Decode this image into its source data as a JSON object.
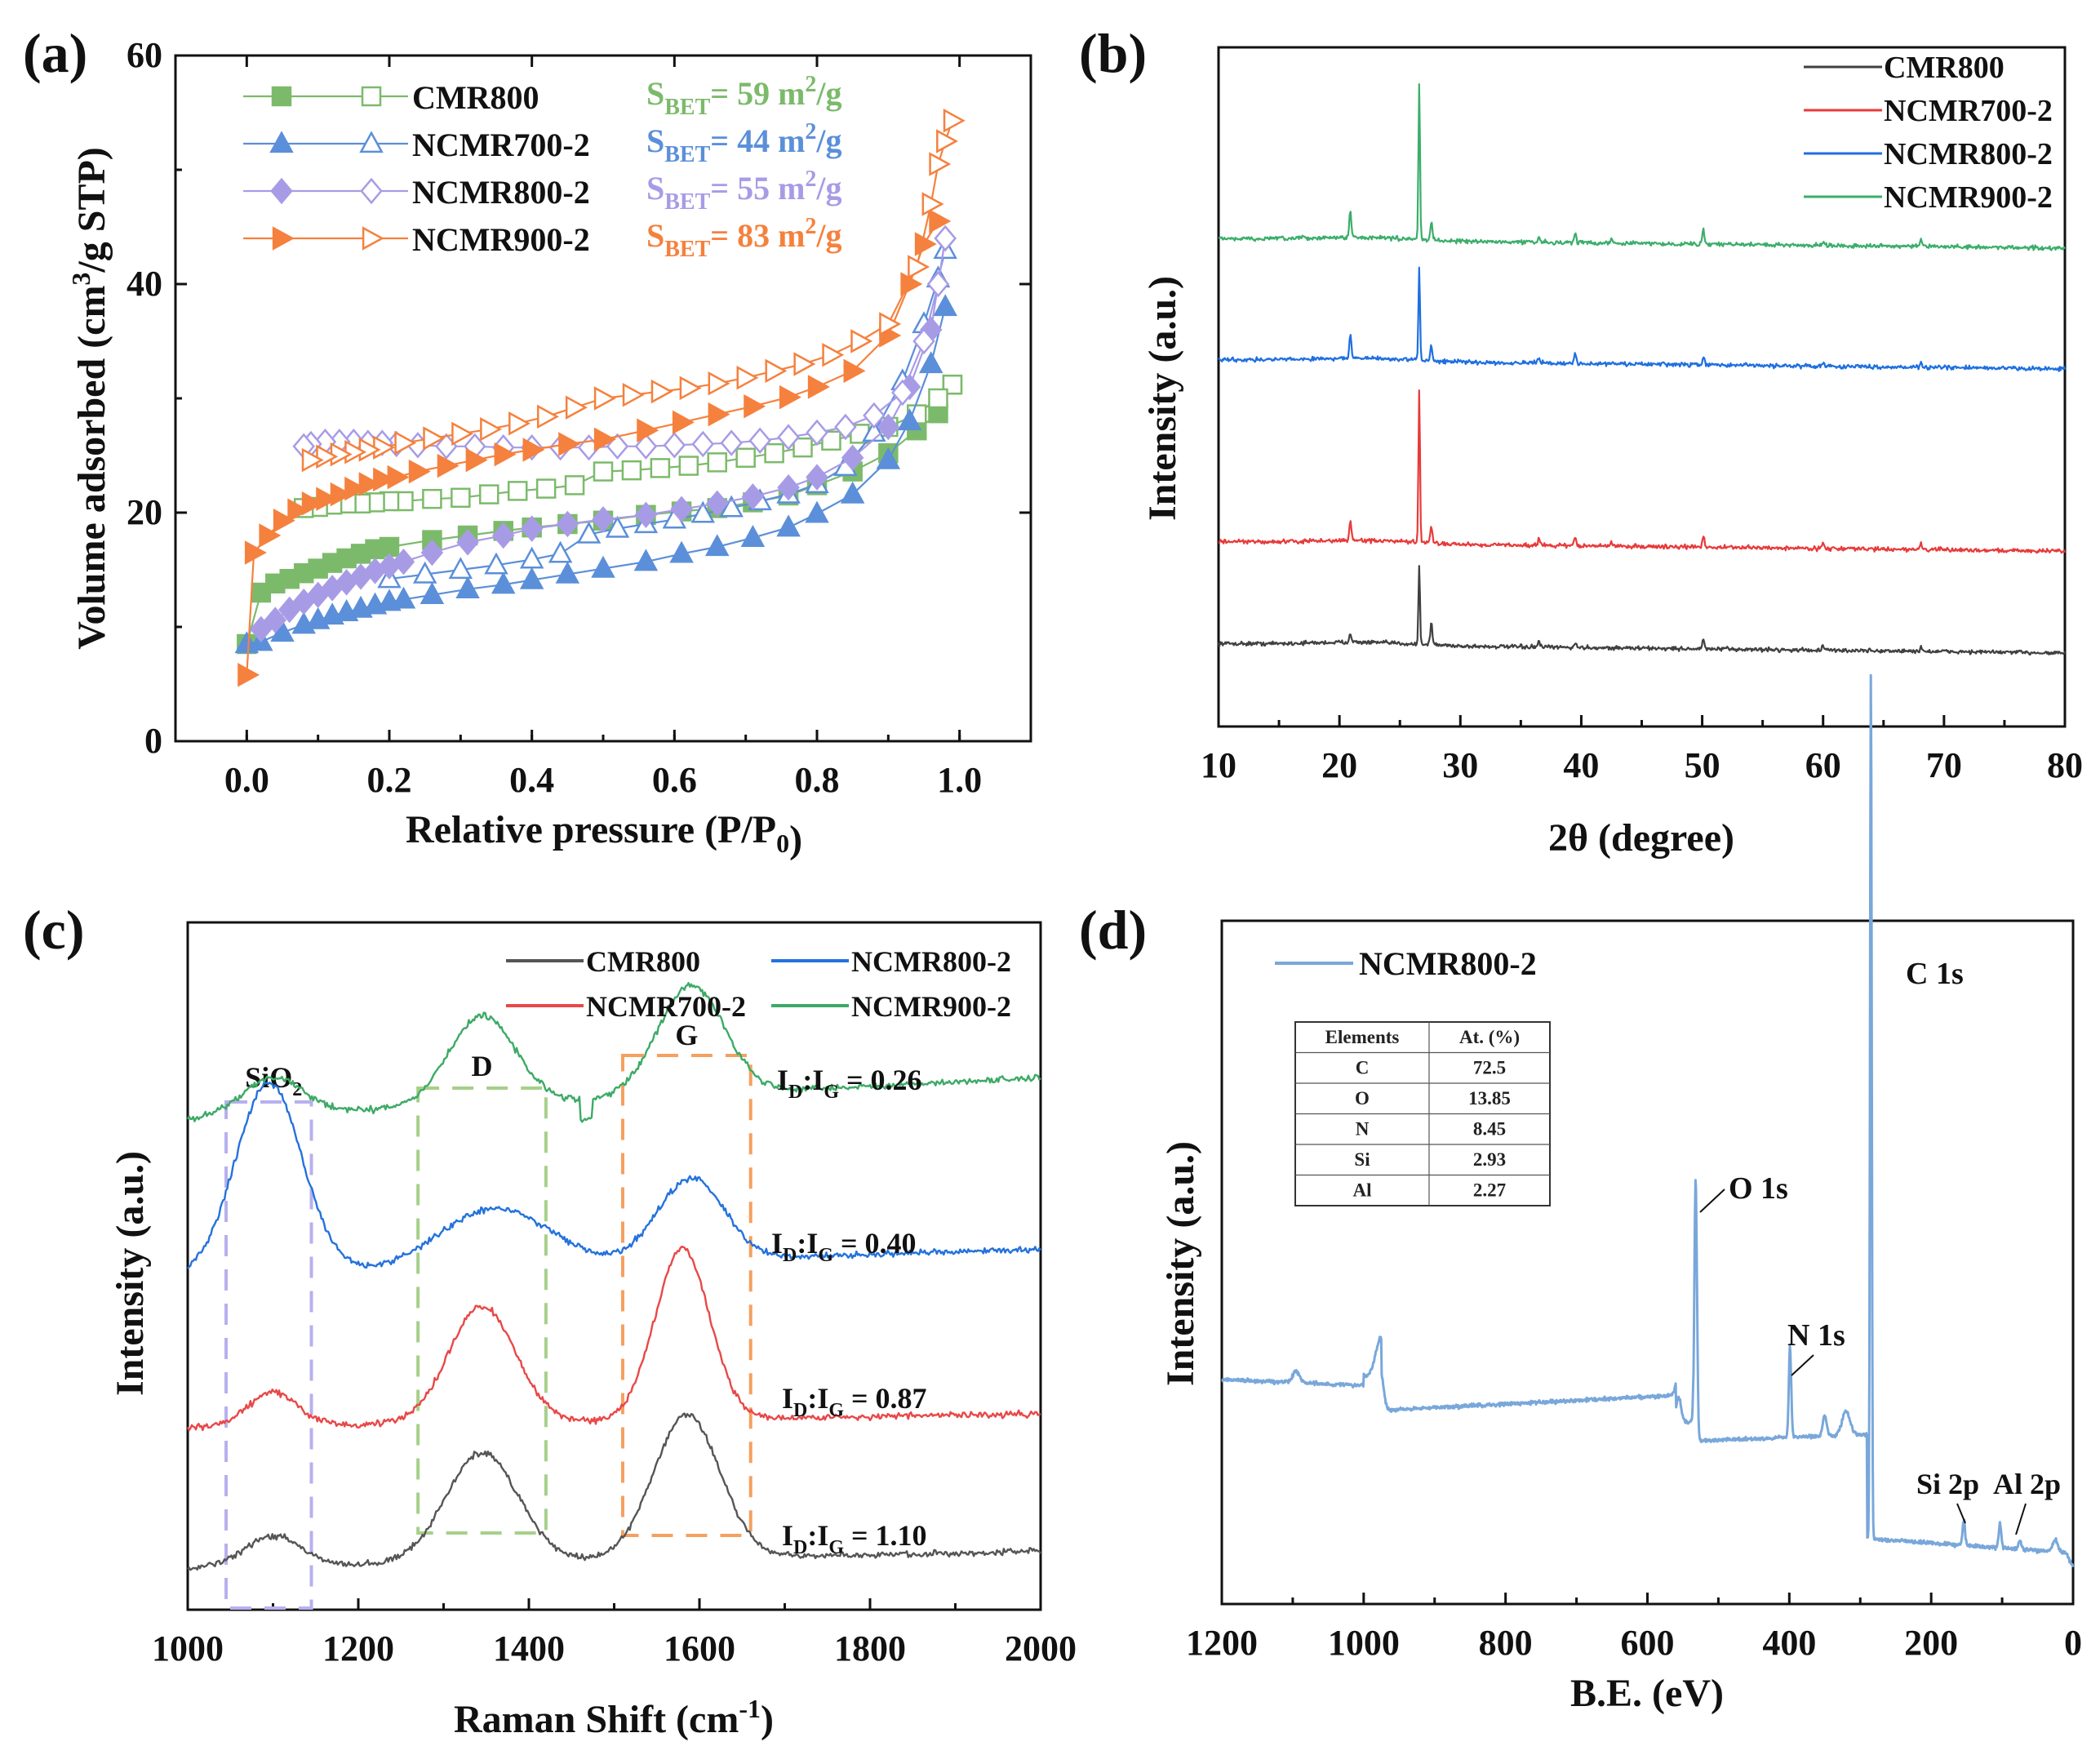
{
  "colors": {
    "green": "#7CBA6B",
    "blue": "#5B8FD9",
    "purple": "#A89BE6",
    "orange": "#F5813E",
    "xrd_black": "#404040",
    "xrd_red": "#E83A3A",
    "xrd_blue": "#1F6FE0",
    "xrd_green": "#3BAE6A",
    "xps_blue": "#79A7DA"
  },
  "chart_data": [
    {
      "panel": "(a)",
      "type": "line",
      "xlabel": "Relative pressure (P/P0)",
      "ylabel": "Volume adsorbed (cm3/g STP)",
      "xlim": [
        -0.1,
        1.1
      ],
      "ylim": [
        0,
        60
      ],
      "xticks": [
        "0.0",
        "0.2",
        "0.4",
        "0.6",
        "0.8",
        "1.0"
      ],
      "yticks": [
        "0",
        "20",
        "40",
        "60"
      ],
      "legend": [
        "CMR800",
        "NCMR700-2",
        "NCMR800-2",
        "NCMR900-2"
      ],
      "bet_labels": [
        "S",
        "BET",
        "= 59 m",
        "2",
        "/g",
        "= 44 m",
        "= 55 m",
        "= 83 m"
      ],
      "series": [
        {
          "name": "CMR800",
          "color": "#7CBA6B",
          "marker": "square",
          "sbet": 59,
          "adsorption": {
            "x": [
              0.0,
              0.02,
              0.04,
              0.06,
              0.08,
              0.1,
              0.12,
              0.14,
              0.16,
              0.18,
              0.2,
              0.26,
              0.31,
              0.36,
              0.4,
              0.45,
              0.5,
              0.56,
              0.61,
              0.66,
              0.71,
              0.76,
              0.8,
              0.85,
              0.9,
              0.94,
              0.97,
              0.99
            ],
            "y": [
              8.5,
              13.0,
              13.8,
              14.2,
              14.7,
              15.1,
              15.6,
              16.0,
              16.4,
              16.8,
              17.0,
              17.6,
              18.0,
              18.4,
              18.7,
              19.0,
              19.3,
              19.8,
              20.1,
              20.4,
              20.9,
              21.5,
              22.4,
              23.6,
              25.2,
              27.2,
              28.7,
              31.2
            ]
          },
          "desorption": {
            "x": [
              0.99,
              0.97,
              0.94,
              0.9,
              0.86,
              0.82,
              0.78,
              0.74,
              0.7,
              0.66,
              0.62,
              0.58,
              0.54,
              0.5,
              0.46,
              0.42,
              0.38,
              0.34,
              0.3,
              0.26,
              0.22,
              0.2,
              0.18,
              0.16,
              0.14,
              0.12,
              0.1,
              0.08
            ],
            "y": [
              31.2,
              30.0,
              28.6,
              27.5,
              26.9,
              26.3,
              25.7,
              25.2,
              24.8,
              24.4,
              24.1,
              23.9,
              23.7,
              23.6,
              22.4,
              22.1,
              21.9,
              21.6,
              21.3,
              21.2,
              21.0,
              21.0,
              20.9,
              20.8,
              20.8,
              20.7,
              20.5,
              20.4
            ]
          }
        },
        {
          "name": "NCMR700-2",
          "color": "#5B8FD9",
          "marker": "triangle",
          "sbet": 44,
          "adsorption": {
            "x": [
              0.0,
              0.02,
              0.05,
              0.08,
              0.1,
              0.12,
              0.14,
              0.16,
              0.18,
              0.2,
              0.22,
              0.26,
              0.31,
              0.36,
              0.4,
              0.45,
              0.5,
              0.56,
              0.61,
              0.66,
              0.71,
              0.76,
              0.8,
              0.85,
              0.9,
              0.93,
              0.96,
              0.98
            ],
            "y": [
              8.5,
              8.7,
              9.5,
              10.2,
              10.6,
              11.0,
              11.3,
              11.6,
              11.9,
              12.2,
              12.4,
              12.8,
              13.3,
              13.7,
              14.1,
              14.6,
              15.1,
              15.7,
              16.4,
              17.0,
              17.8,
              18.7,
              19.9,
              21.6,
              24.6,
              28.0,
              33.0,
              38.0
            ]
          },
          "desorption": {
            "x": [
              0.98,
              0.97,
              0.95,
              0.92,
              0.88,
              0.84,
              0.8,
              0.76,
              0.72,
              0.68,
              0.64,
              0.6,
              0.56,
              0.52,
              0.48,
              0.44,
              0.4,
              0.35,
              0.3,
              0.25,
              0.2
            ],
            "y": [
              43.0,
              40.5,
              36.5,
              31.5,
              27.0,
              24.0,
              22.5,
              21.6,
              21.0,
              20.4,
              19.9,
              19.4,
              19.0,
              18.6,
              18.1,
              16.4,
              15.9,
              15.4,
              15.0,
              14.6,
              14.2
            ]
          }
        },
        {
          "name": "NCMR800-2",
          "color": "#A89BE6",
          "marker": "diamond",
          "sbet": 55,
          "adsorption": {
            "x": [
              0.02,
              0.04,
              0.06,
              0.08,
              0.1,
              0.12,
              0.14,
              0.16,
              0.18,
              0.2,
              0.22,
              0.26,
              0.31,
              0.36,
              0.4,
              0.45,
              0.5,
              0.56,
              0.61,
              0.66,
              0.71,
              0.76,
              0.8,
              0.85,
              0.9,
              0.93,
              0.96,
              0.98
            ],
            "y": [
              9.8,
              10.6,
              11.5,
              12.2,
              12.8,
              13.4,
              13.9,
              14.4,
              14.9,
              15.3,
              15.7,
              16.5,
              17.4,
              18.0,
              18.6,
              19.0,
              19.4,
              19.8,
              20.3,
              20.8,
              21.4,
              22.2,
              23.1,
              24.8,
              27.5,
              31.0,
              36.0,
              44.0
            ]
          },
          "desorption": {
            "x": [
              0.98,
              0.97,
              0.95,
              0.92,
              0.88,
              0.84,
              0.8,
              0.76,
              0.72,
              0.68,
              0.64,
              0.6,
              0.56,
              0.52,
              0.48,
              0.44,
              0.4,
              0.36,
              0.32,
              0.28,
              0.24,
              0.21,
              0.19,
              0.17,
              0.15,
              0.13,
              0.11,
              0.09,
              0.08
            ],
            "y": [
              44.0,
              40.0,
              35.0,
              30.5,
              28.5,
              27.5,
              27.0,
              26.6,
              26.3,
              26.1,
              26.0,
              25.9,
              25.8,
              25.8,
              25.7,
              25.7,
              25.7,
              25.7,
              25.8,
              25.8,
              25.9,
              26.0,
              26.1,
              26.1,
              26.2,
              26.2,
              26.2,
              26.0,
              25.8
            ]
          }
        },
        {
          "name": "NCMR900-2",
          "color": "#F5813E",
          "marker": "tri-right",
          "sbet": 83,
          "adsorption": {
            "x": [
              0.0,
              0.01,
              0.03,
              0.05,
              0.07,
              0.09,
              0.11,
              0.13,
              0.15,
              0.17,
              0.19,
              0.21,
              0.24,
              0.28,
              0.32,
              0.36,
              0.4,
              0.45,
              0.5,
              0.56,
              0.61,
              0.66,
              0.71,
              0.76,
              0.8,
              0.85,
              0.9,
              0.93,
              0.95,
              0.97
            ],
            "y": [
              5.8,
              16.5,
              18.0,
              19.3,
              20.2,
              20.8,
              21.2,
              21.6,
              22.1,
              22.5,
              22.9,
              23.1,
              23.6,
              24.1,
              24.6,
              25.1,
              25.5,
              26.0,
              26.4,
              27.2,
              27.9,
              28.6,
              29.3,
              30.1,
              31.0,
              32.4,
              35.5,
              40.0,
              43.5,
              45.5
            ]
          },
          "desorption": {
            "x": [
              0.99,
              0.98,
              0.97,
              0.96,
              0.94,
              0.9,
              0.86,
              0.82,
              0.78,
              0.74,
              0.7,
              0.66,
              0.62,
              0.58,
              0.54,
              0.5,
              0.46,
              0.42,
              0.38,
              0.34,
              0.3,
              0.26,
              0.22,
              0.19,
              0.17,
              0.15,
              0.13,
              0.11,
              0.09
            ],
            "y": [
              54.3,
              52.5,
              50.5,
              47.0,
              41.5,
              36.5,
              35.0,
              33.8,
              33.0,
              32.4,
              31.8,
              31.3,
              30.9,
              30.6,
              30.3,
              30.0,
              29.2,
              28.4,
              27.8,
              27.3,
              26.9,
              26.5,
              26.1,
              25.7,
              25.5,
              25.3,
              25.1,
              24.9,
              24.6
            ]
          }
        }
      ]
    },
    {
      "panel": "(b)",
      "type": "line",
      "xlabel": "2θ (degree)",
      "ylabel": "Intensity (a.u.)",
      "xlim": [
        10,
        80
      ],
      "xticks": [
        "10",
        "20",
        "30",
        "40",
        "50",
        "60",
        "70",
        "80"
      ],
      "legend": [
        "CMR800",
        "NCMR700-2",
        "NCMR800-2",
        "NCMR900-2"
      ],
      "series": [
        {
          "name": "CMR800",
          "color": "#404040",
          "baseline": 4.5,
          "peaks": [
            [
              20.9,
              0.9
            ],
            [
              26.6,
              7.0
            ],
            [
              27.6,
              2.0
            ],
            [
              36.5,
              0.5
            ],
            [
              39.5,
              0.4
            ],
            [
              50.1,
              0.8
            ],
            [
              60.0,
              0.4
            ],
            [
              68.1,
              0.4
            ]
          ]
        },
        {
          "name": "NCMR700-2",
          "color": "#E83A3A",
          "baseline": 13.6,
          "peaks": [
            [
              20.9,
              1.8
            ],
            [
              26.6,
              13.8
            ],
            [
              27.6,
              1.4
            ],
            [
              36.5,
              0.6
            ],
            [
              39.5,
              0.7
            ],
            [
              42.5,
              0.4
            ],
            [
              50.1,
              1.1
            ],
            [
              60.0,
              0.5
            ],
            [
              68.1,
              0.6
            ]
          ]
        },
        {
          "name": "NCMR800-2",
          "color": "#1F6FE0",
          "baseline": 29.9,
          "peaks": [
            [
              20.9,
              2.1
            ],
            [
              26.6,
              8.4
            ],
            [
              27.6,
              1.3
            ],
            [
              36.5,
              0.4
            ],
            [
              39.5,
              0.8
            ],
            [
              50.1,
              0.7
            ],
            [
              60.0,
              0.3
            ],
            [
              68.1,
              0.4
            ]
          ]
        },
        {
          "name": "NCMR900-2",
          "color": "#3BAE6A",
          "baseline": 40.7,
          "peaks": [
            [
              20.9,
              2.4
            ],
            [
              26.6,
              14.0
            ],
            [
              27.6,
              1.6
            ],
            [
              36.5,
              0.5
            ],
            [
              39.5,
              0.9
            ],
            [
              42.5,
              0.5
            ],
            [
              50.1,
              1.4
            ],
            [
              60.0,
              0.4
            ],
            [
              68.1,
              0.6
            ]
          ]
        }
      ]
    },
    {
      "panel": "(c)",
      "type": "line",
      "xlabel": "Raman Shift (cm-1)",
      "ylabel": "Intensity (a.u.)",
      "xlim": [
        1000,
        2000
      ],
      "xticks": [
        "1000",
        "1200",
        "1400",
        "1600",
        "1800",
        "2000"
      ],
      "legend": [
        "CMR800",
        "NCMR800-2",
        "NCMR700-2",
        "NCMR900-2"
      ],
      "band_labels": [
        "SiO",
        "2",
        "D",
        "G"
      ],
      "ratio_prefix": [
        "I",
        "D",
        ":I",
        "G",
        " = "
      ],
      "series": [
        {
          "name": "CMR800",
          "color": "#555555",
          "ratio": "1.10",
          "baseline": 2.5,
          "slope": 2.4,
          "bands": [
            [
              1100,
              45,
              4.5
            ],
            [
              1345,
              60,
              16.0
            ],
            [
              1585,
              55,
              21.0
            ]
          ]
        },
        {
          "name": "NCMR700-2",
          "color": "#E84848",
          "ratio": "0.87",
          "baseline": 23.0,
          "slope": 2.0,
          "bands": [
            [
              1100,
              40,
              5.0
            ],
            [
              1345,
              55,
              17.0
            ],
            [
              1580,
              45,
              25.0
            ]
          ]
        },
        {
          "name": "NCMR800-2",
          "color": "#2472DC",
          "ratio": "0.40",
          "baseline": 45.0,
          "slope": 4.0,
          "bands": [
            [
              1095,
              55,
              28.0
            ],
            [
              1360,
              90,
              8.5
            ],
            [
              1590,
              55,
              12.0
            ]
          ]
        },
        {
          "name": "NCMR900-2",
          "color": "#3DAA66",
          "ratio": "0.26",
          "baseline": 68.0,
          "slope": 6.0,
          "bands": [
            [
              1100,
              50,
              5.5
            ],
            [
              1345,
              55,
              13.0
            ],
            [
              1590,
              55,
              16.0
            ]
          ]
        }
      ]
    },
    {
      "panel": "(d)",
      "type": "line",
      "xlabel": "B.E. (eV)",
      "ylabel": "Intensity (a.u.)",
      "xlim": [
        1200,
        0
      ],
      "xticks": [
        "1200",
        "1000",
        "800",
        "600",
        "400",
        "200",
        "0"
      ],
      "legend": [
        "NCMR800-2"
      ],
      "peak_labels": [
        "C 1s",
        "O 1s",
        "N 1s",
        "Si 2p",
        "Al 2p"
      ],
      "series": [
        {
          "name": "NCMR800-2",
          "color": "#79A7DA"
        }
      ],
      "table": {
        "headers": [
          "Elements",
          "At. (%)"
        ],
        "rows": [
          [
            "C",
            "72.5"
          ],
          [
            "O",
            "13.85"
          ],
          [
            "N",
            "8.45"
          ],
          [
            "Si",
            "2.93"
          ],
          [
            "Al",
            "2.27"
          ]
        ]
      }
    }
  ]
}
